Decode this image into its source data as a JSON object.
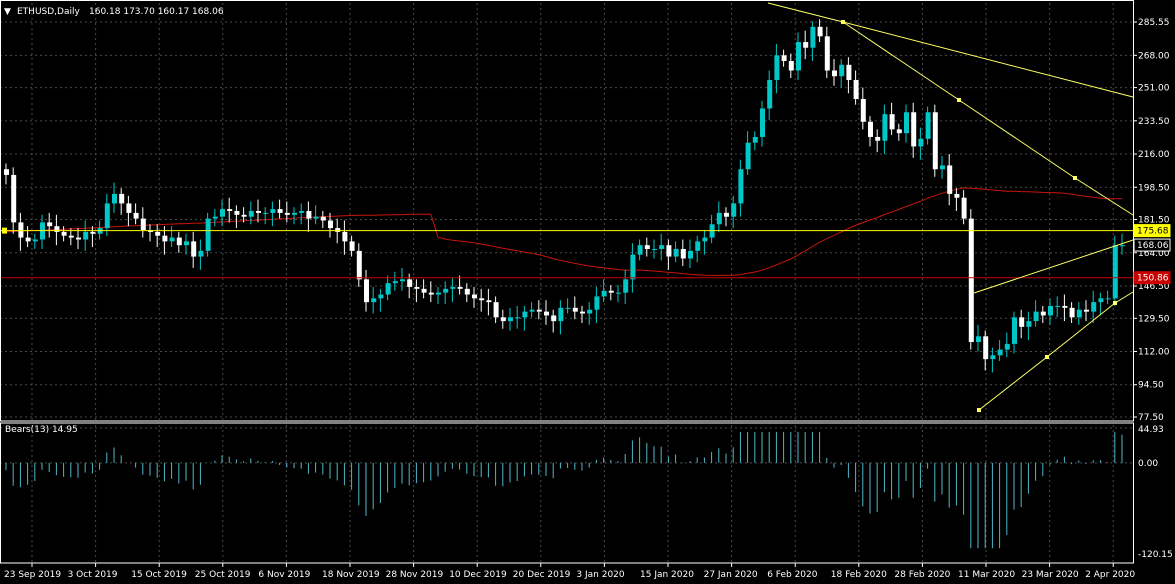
{
  "header": {
    "menu_arrow": "▼",
    "symbol": "ETHUSD,Daily",
    "ohlc": "160.18 173.70 160.17 168.06"
  },
  "colors": {
    "background": "#000000",
    "grid": "#4a4a4a",
    "bull": "#00c8c8",
    "bear": "#ffffff",
    "ma": "#c8140a",
    "trend": "#ffff66",
    "hline_top": "#ffff00",
    "hline_bottom": "#c80000",
    "indicator": "#4fb6c9"
  },
  "price_axis": {
    "ticks": [
      "285.55",
      "268.00",
      "251.00",
      "233.50",
      "216.00",
      "198.50",
      "181.50",
      "164.00",
      "146.50",
      "129.50",
      "112.00",
      "94.50",
      "77.50"
    ],
    "markers": [
      {
        "label": "175.68",
        "value": 175.68,
        "bg": "#ffff00",
        "fg": "#000000"
      },
      {
        "label": "168.06",
        "value": 168.06,
        "bg": "#000000",
        "fg": "#ffffff"
      },
      {
        "label": "150.86",
        "value": 150.86,
        "bg": "#c80000",
        "fg": "#ffffff"
      }
    ],
    "min": 77.5,
    "max": 285.55
  },
  "indicator": {
    "title": "Bears(13) 14.95",
    "ticks": [
      "44.93",
      "0.00",
      "-120.15"
    ],
    "min": -120.15,
    "max": 44.93
  },
  "time_axis": [
    "23 Sep 2019",
    "3 Oct 2019",
    "15 Oct 2019",
    "25 Oct 2019",
    "6 Nov 2019",
    "18 Nov 2019",
    "28 Nov 2019",
    "10 Dec 2019",
    "20 Dec 2019",
    "3 Jan 2020",
    "15 Jan 2020",
    "27 Jan 2020",
    "6 Feb 2020",
    "18 Feb 2020",
    "28 Feb 2020",
    "11 Mar 2020",
    "23 Mar 2020",
    "2 Apr 2020"
  ],
  "chart_data": {
    "type": "candlestick",
    "series": "ETHUSD Daily",
    "close_series": [
      205,
      180,
      172,
      170,
      171,
      180,
      178,
      175,
      173,
      172,
      171,
      175,
      174,
      177,
      190,
      195,
      190,
      185,
      182,
      176,
      175,
      173,
      170,
      172,
      168,
      170,
      162,
      165,
      182,
      183,
      187,
      186,
      184,
      183,
      186,
      185,
      185,
      187,
      185,
      184,
      185,
      186,
      182,
      183,
      181,
      177,
      175,
      170,
      165,
      150,
      138,
      140,
      142,
      148,
      149,
      150,
      146,
      145,
      143,
      142,
      143,
      145,
      146,
      145,
      142,
      140,
      139,
      138,
      130,
      128,
      130,
      130,
      133,
      134,
      133,
      131,
      128,
      135,
      135,
      133,
      132,
      134,
      141,
      144,
      143,
      143,
      150,
      163,
      168,
      166,
      166,
      168,
      162,
      166,
      161,
      165,
      170,
      172,
      179,
      185,
      183,
      190,
      208,
      222,
      225,
      240,
      255,
      268,
      265,
      260,
      275,
      272,
      283,
      278,
      260,
      257,
      263,
      255,
      245,
      233,
      225,
      223,
      237,
      229,
      227,
      238,
      220,
      224,
      238,
      208,
      210,
      195,
      193,
      182,
      117,
      120,
      108,
      110,
      113,
      116,
      130,
      125,
      128,
      133,
      131,
      136,
      136,
      135,
      130,
      134,
      133,
      138,
      140,
      140,
      168,
      168
    ],
    "ma_label": "MA",
    "trend_lines": "yellow",
    "horizontal_levels": [
      175.68,
      150.86
    ]
  }
}
